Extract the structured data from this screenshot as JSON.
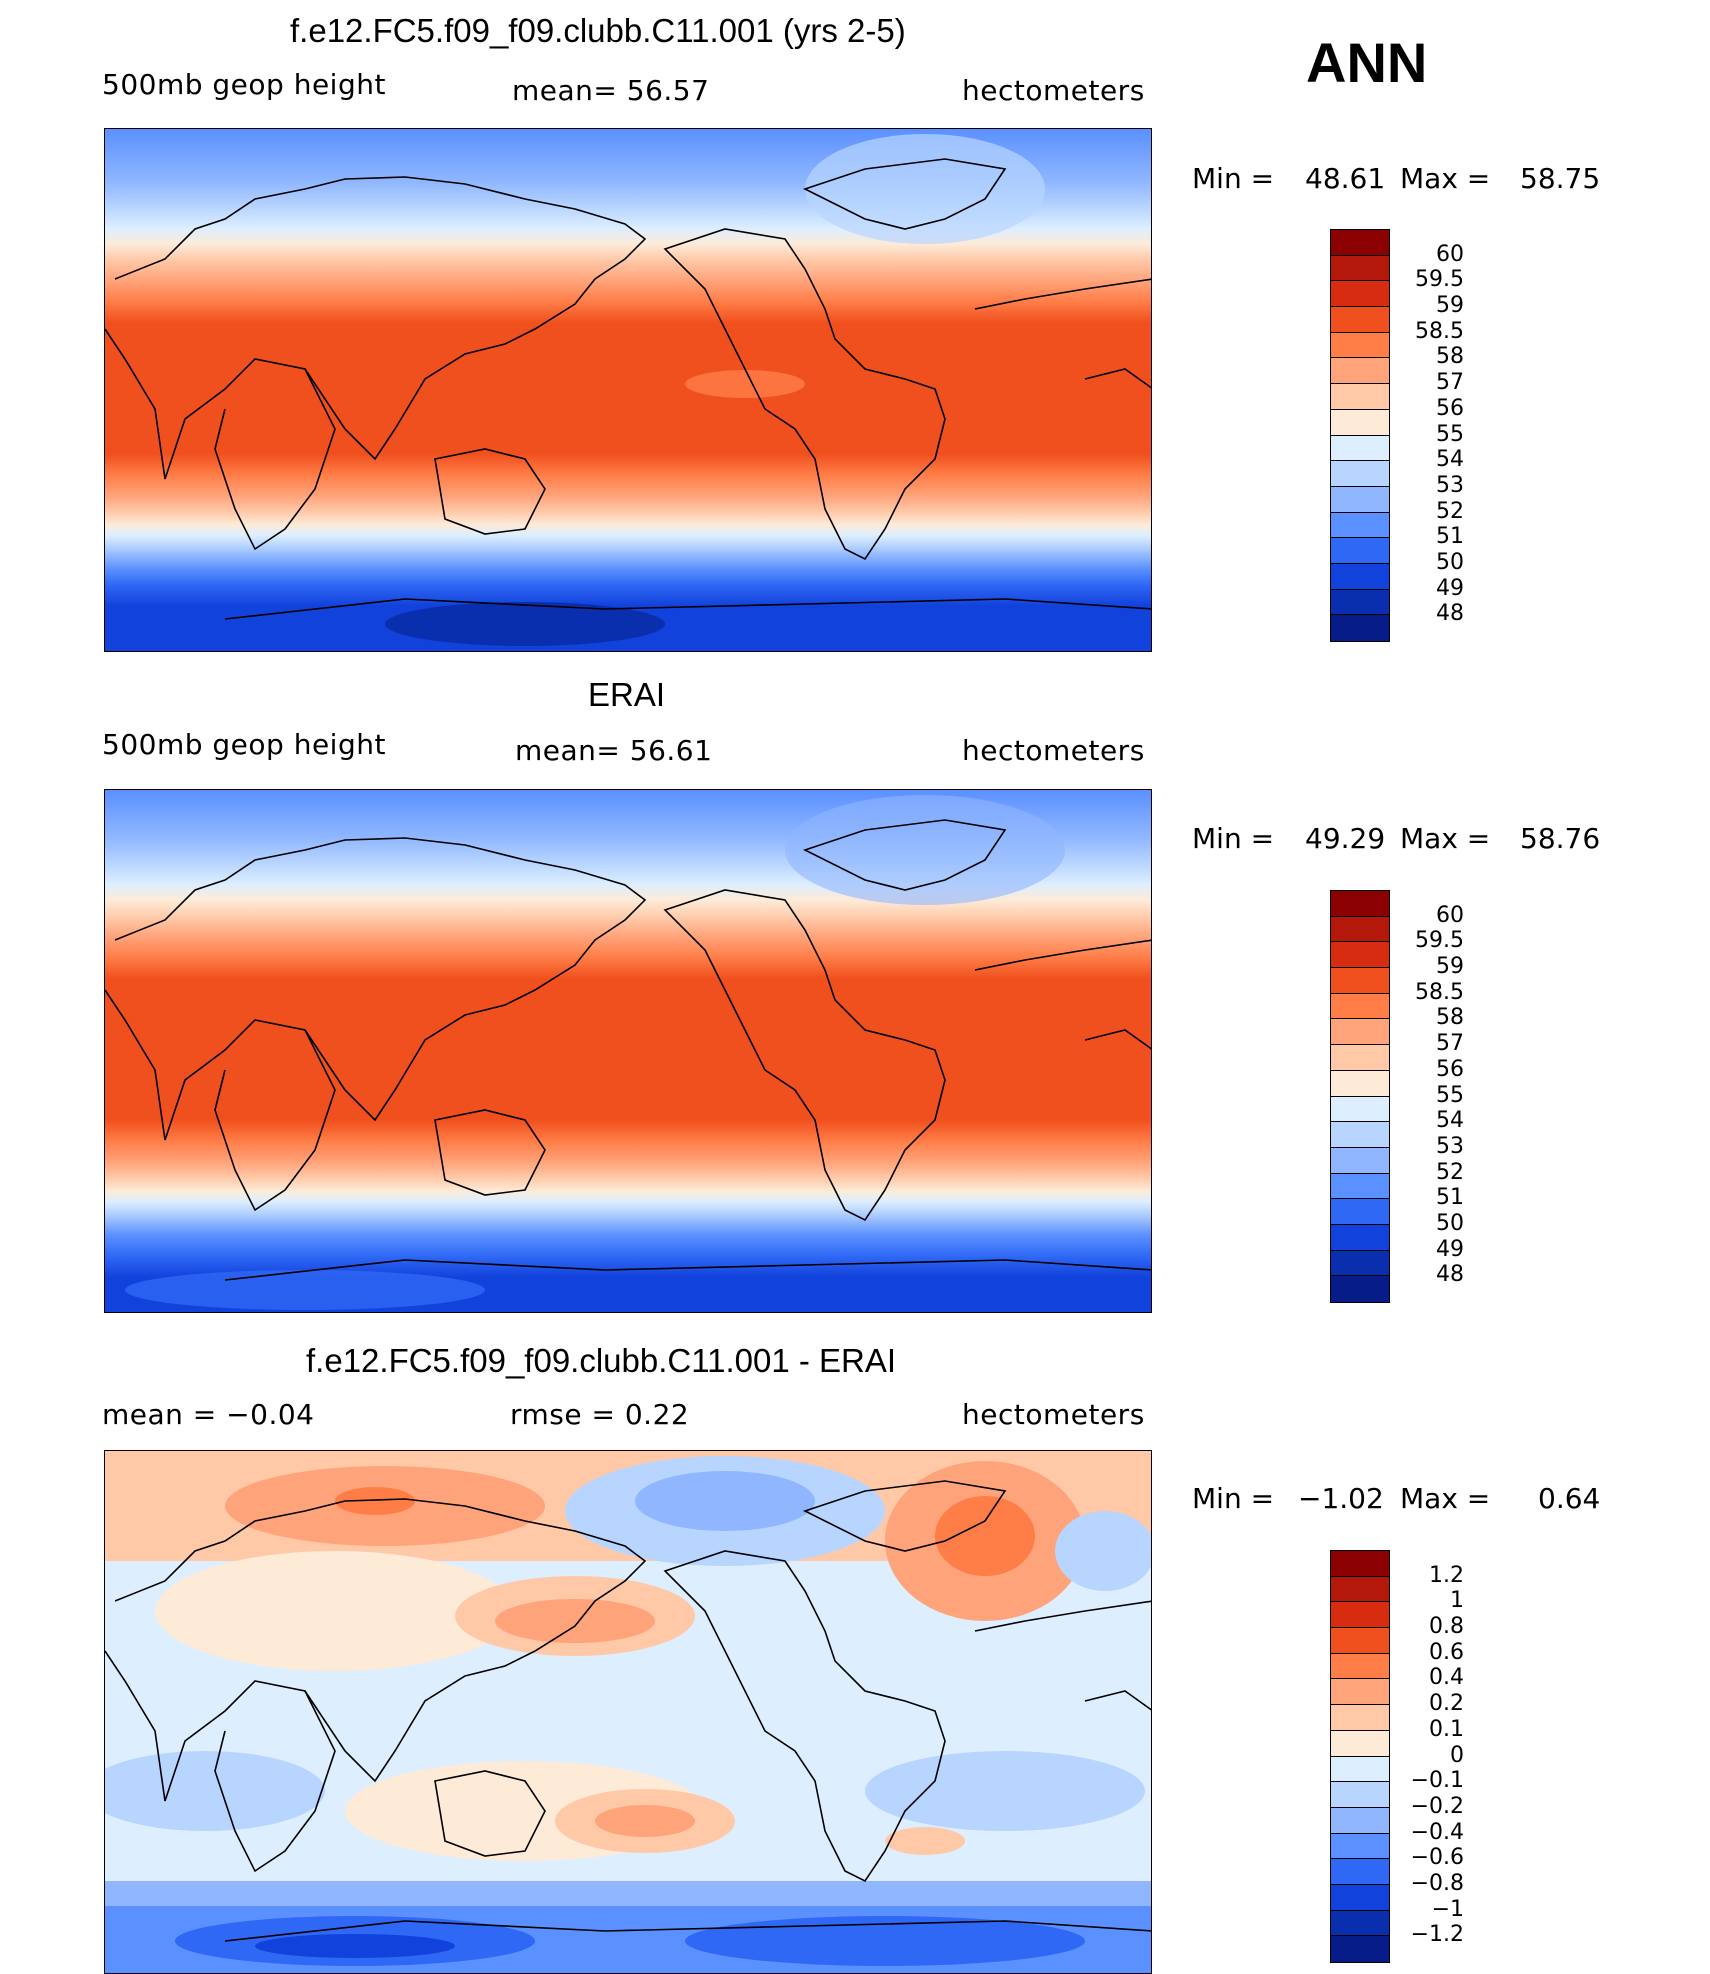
{
  "season": "ANN",
  "panels": [
    {
      "title": "f.e12.FC5.f09_f09.clubb.C11.001 (yrs 2-5)",
      "left_label": "500mb  geop  height",
      "center_label": "mean=   56.57",
      "right_label": "hectometers",
      "min_label": "Min  =",
      "min_value": "48.61",
      "max_label": "Max  =",
      "max_value": "58.75",
      "colorbar": {
        "labels": [
          "60",
          "59.5",
          "59",
          "58.5",
          "58",
          "57",
          "56",
          "55",
          "54",
          "53",
          "52",
          "51",
          "50",
          "49",
          "48"
        ],
        "colors": [
          "#8b0000",
          "#b4180a",
          "#d82c10",
          "#f0501e",
          "#ff7d47",
          "#ffa37a",
          "#ffc9a8",
          "#fdebd8",
          "#ddeeff",
          "#b8d5ff",
          "#8fb6ff",
          "#5a90ff",
          "#2f68f5",
          "#1242dc",
          "#0a2fae",
          "#061c88"
        ]
      }
    },
    {
      "title": "ERAI",
      "left_label": "500mb  geop  height",
      "center_label": "mean=   56.61",
      "right_label": "hectometers",
      "min_label": "Min  =",
      "min_value": "49.29",
      "max_label": "Max  =",
      "max_value": "58.76",
      "colorbar": {
        "labels": [
          "60",
          "59.5",
          "59",
          "58.5",
          "58",
          "57",
          "56",
          "55",
          "54",
          "53",
          "52",
          "51",
          "50",
          "49",
          "48"
        ],
        "colors": [
          "#8b0000",
          "#b4180a",
          "#d82c10",
          "#f0501e",
          "#ff7d47",
          "#ffa37a",
          "#ffc9a8",
          "#fdebd8",
          "#ddeeff",
          "#b8d5ff",
          "#8fb6ff",
          "#5a90ff",
          "#2f68f5",
          "#1242dc",
          "#0a2fae",
          "#061c88"
        ]
      }
    },
    {
      "title": "f.e12.FC5.f09_f09.clubb.C11.001 - ERAI",
      "left_label": "mean  =    −0.04",
      "center_label": "rmse  =     0.22",
      "right_label": "hectometers",
      "min_label": "Min  =",
      "min_value": "−1.02",
      "max_label": "Max  =",
      "max_value": "0.64",
      "colorbar": {
        "labels": [
          "1.2",
          "1",
          "0.8",
          "0.6",
          "0.4",
          "0.2",
          "0.1",
          "0",
          "−0.1",
          "−0.2",
          "−0.4",
          "−0.6",
          "−0.8",
          "−1",
          "−1.2"
        ],
        "colors": [
          "#8b0000",
          "#b4180a",
          "#d82c10",
          "#f0501e",
          "#ff7d47",
          "#ffa37a",
          "#ffc9a8",
          "#fdebd8",
          "#ddeeff",
          "#b8d5ff",
          "#8fb6ff",
          "#5a90ff",
          "#2f68f5",
          "#1242dc",
          "#0a2fae",
          "#061c88"
        ]
      }
    }
  ]
}
